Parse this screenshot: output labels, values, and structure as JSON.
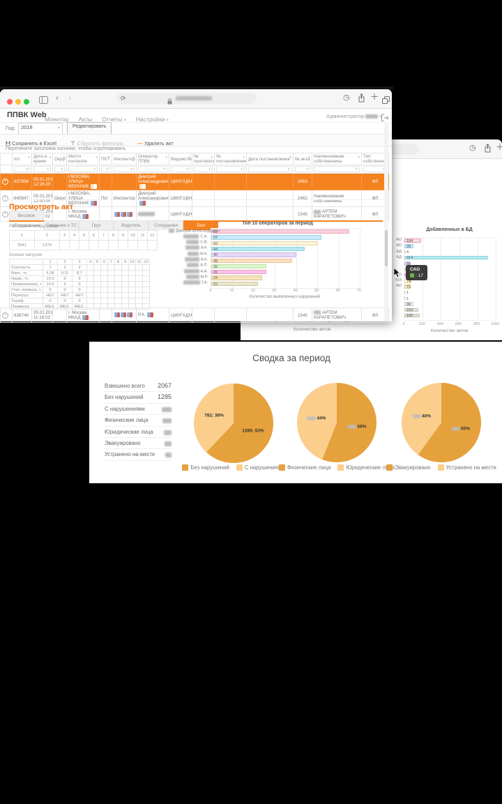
{
  "accent": "#F5821F",
  "chrome": {
    "traffic": [
      "#ff5f57",
      "#febc2e",
      "#28c840"
    ],
    "icons": [
      "sidebar",
      "back",
      "forward",
      "reload",
      "lock",
      "history",
      "share",
      "new-tab",
      "tabs"
    ]
  },
  "app": {
    "title": "ППВК Web",
    "menu": [
      {
        "label": "Монитор",
        "caret": false
      },
      {
        "label": "Акты",
        "caret": false
      },
      {
        "label": "Отчеты",
        "caret": true
      },
      {
        "label": "Настройки",
        "caret": true
      }
    ],
    "user_label": "Администратор",
    "year_label": "Год:",
    "year_value": "2018",
    "edit_button": "Редактировать",
    "toolbar": {
      "save": "Сохранить в Excel",
      "reset": "Сбросить фильтры",
      "delete": "Удалить акт"
    },
    "group_hint": "Перетяните заголовок колонки, чтобы сгруппировать",
    "table": {
      "columns": [
        {
          "label": "",
          "width": 17
        },
        {
          "label": "п/п",
          "width": 28
        },
        {
          "label": "Дата и время",
          "width": 30
        },
        {
          "label": "Округ",
          "width": 20
        },
        {
          "label": "Место контроля",
          "width": 47
        },
        {
          "label": "ПКТ",
          "width": 18
        },
        {
          "label": "Инспектор",
          "width": 35
        },
        {
          "label": "Оператор ППВК",
          "width": 47
        },
        {
          "label": "Ведомство",
          "width": 33
        },
        {
          "label": "№ протокола",
          "width": 32
        },
        {
          "label": "№ постановления",
          "width": 46
        },
        {
          "label": "Дата постановления",
          "width": 67
        },
        {
          "label": "№ акта",
          "width": 27
        },
        {
          "label": "Наименование собственника",
          "width": 71
        },
        {
          "label": "Тип собственника",
          "width": 39
        }
      ],
      "rows": [
        {
          "selected": true,
          "cells": [
            {
              "exp": 1
            },
            {
              "text": "637856"
            },
            {
              "text": "05.01.2018 12:26:20"
            },
            {},
            {
              "text": "г.МОСКВА, УЛИЦА ВЕРХНИЕ",
              "thumb": 1
            },
            {},
            {},
            {
              "text": "Дмитрий Александрович",
              "thumb": 1
            },
            {
              "text": "ЦМУГАДН"
            },
            {},
            {},
            {},
            {
              "text": "2463"
            },
            {},
            {
              "text": "ФЛ"
            }
          ]
        },
        {
          "selected": false,
          "cells": [
            {
              "exp": 1
            },
            {
              "text": "640947"
            },
            {
              "text": "05.01.2018 12:00:00"
            },
            {
              "text": "Округ"
            },
            {
              "text": "г.МОСКВА, УЛИЦА ВЕРХНИЕ",
              "thumb": 1
            },
            {
              "text": "Пкт"
            },
            {
              "text": "Инспектор"
            },
            {
              "text": "Дмитрий Александрович",
              "thumb": 1
            },
            {
              "text": "ЦМУГАДН"
            },
            {},
            {},
            {},
            {
              "text": "2462"
            },
            {
              "text": "Наименование собственника"
            },
            {
              "text": "ФЛ"
            }
          ]
        },
        {
          "selected": false,
          "cells": [
            {
              "exp": 1
            },
            {
              "text": "638729"
            },
            {
              "text": "05.01.2018 11:16:02"
            },
            {},
            {
              "text": "г. Москва МКАД",
              "thumb": 1
            },
            {},
            {
              "thumbs": 3
            },
            {
              "blur": 24
            },
            {
              "text": "ЦМУГАДН"
            },
            {},
            {},
            {},
            {
              "text": "1545"
            },
            {
              "text": "АРТЕМ КАРАПЕТОВИЧ",
              "blurPrefix": 1
            },
            {
              "text": "ФЛ"
            }
          ]
        }
      ],
      "row_after_detail": {
        "selected": false,
        "cells": [
          {
            "exp": 1
          },
          {
            "text": "638748"
          },
          {
            "text": "05.01.2018 11:16:02"
          },
          {},
          {
            "text": "г. Москва МКАД",
            "thumb": 1
          },
          {},
          {
            "thumbs": 3
          },
          {
            "text": "Р.А.",
            "thumb": 1
          },
          {
            "text": "ЦМУГАДН"
          },
          {},
          {},
          {},
          {
            "text": "1545"
          },
          {
            "text": "АРТЕМ КАРАПЕТОВИЧ",
            "blurPrefix": 1
          },
          {
            "text": "ФЛ"
          }
        ]
      }
    },
    "detail": {
      "title": "Просмотреть акт",
      "tabs": [
        {
          "label": "Весовое оборудование",
          "active": false
        },
        {
          "label": "Сведения о ТС",
          "active": false
        },
        {
          "label": "Груз",
          "active": false
        },
        {
          "label": "Водитель",
          "active": false
        },
        {
          "label": "Сотрудники",
          "active": false
        },
        {
          "label": "Оси",
          "active": true
        }
      ],
      "axle_distance": {
        "caption": "Расстояние между осями",
        "headers": [
          "1",
          "2",
          "3",
          "4",
          "5",
          "6",
          "7",
          "8",
          "9",
          "10",
          "11",
          "12"
        ],
        "values": [
          "3541",
          "1379",
          "",
          "",
          "",
          "",
          "",
          "",
          "",
          "",
          "",
          ""
        ]
      },
      "axle_loads": {
        "caption": "Осевые нагрузки",
        "col_headers": [
          "1",
          "2",
          "3",
          "4",
          "5",
          "6",
          "7",
          "8",
          "9",
          "10",
          "11",
          "12"
        ],
        "rows": [
          {
            "label": "Скатность",
            "values": [
              "1",
              "2",
              "2"
            ]
          },
          {
            "label": "Факт., тс",
            "values": [
              "6,38",
              "9,11",
              "8,7"
            ]
          },
          {
            "label": "Норм., тс",
            "values": [
              "10.5",
              "9",
              "9"
            ]
          },
          {
            "label": "Применяемая, т",
            "values": [
              "10.5",
              "9",
              "9"
            ]
          },
          {
            "label": "Учит. превыш, т",
            "values": [
              "0",
              "0",
              "0"
            ]
          },
          {
            "label": "Перегруз",
            "values": [
              "НЕТ",
              "НЕТ",
              "НЕТ"
            ]
          },
          {
            "label": "Тариф",
            "values": [
              "0",
              "0",
              "0"
            ]
          },
          {
            "label": "Подвеска",
            "values": [
              "МЕХ.",
              "МЕХ.",
              "МЕХ."
            ]
          }
        ]
      }
    }
  },
  "summary": {
    "title": "Сводка за период",
    "stats": [
      {
        "label": "Взвешено всего",
        "value": "2067",
        "blur": 0
      },
      {
        "label": "Без нарушений",
        "value": "1285",
        "blur": 0
      },
      {
        "label": "С нарушениями",
        "value": "",
        "blur": 14
      },
      {
        "label": "Физические лица",
        "value": "",
        "blur": 13
      },
      {
        "label": "Юридические лица",
        "value": "",
        "blur": 11
      },
      {
        "label": "Эвакуировано",
        "value": "",
        "blur": 10
      },
      {
        "label": "Устранено на месте",
        "value": "",
        "blur": 9
      }
    ]
  },
  "chart_data": [
    {
      "id": "top-operators",
      "type": "bar",
      "orientation": "horizontal",
      "title": "Топ 10 операторов за период",
      "xlabel": "Количество выявленных нарушений",
      "xlim": [
        0,
        70
      ],
      "xticks": [
        0,
        10,
        20,
        30,
        40,
        50,
        60,
        70
      ],
      "grid": true,
      "categories": [
        {
          "label": "Дмитрий Александрович",
          "blur": 8
        },
        {
          "label": "С.А.",
          "blur": 22
        },
        {
          "label": "С.В.",
          "blur": 18
        },
        {
          "label": "А.К.",
          "blur": 20
        },
        {
          "label": "М.К.",
          "blur": 16
        },
        {
          "label": "А.К.",
          "blur": 21
        },
        {
          "label": "А.П.",
          "blur": 17
        },
        {
          "label": "А.А.",
          "blur": 22
        },
        {
          "label": "М.Р.",
          "blur": 19
        },
        {
          "label": "Т.А.",
          "blur": 24
        }
      ],
      "values": [
        65,
        52,
        50,
        44,
        40,
        38,
        26,
        26,
        24,
        22
      ],
      "colors": [
        "#FAD1DC",
        "#C9E9F8",
        "#FDF3D9",
        "#B5EAF2",
        "#E6D9F7",
        "#FBDFC2",
        "#DDF5CE",
        "#FAC4E4",
        "#F5E3BD",
        "#EAE6CC"
      ],
      "borders": [
        "#ECA4B6",
        "#9FCFE8",
        "#E8D5A4",
        "#8ED4E0",
        "#C6B4E6",
        "#EEC391",
        "#B7E3A0",
        "#EB9CCC",
        "#DDC690",
        "#CFC9A5"
      ]
    },
    {
      "id": "added-to-db",
      "type": "bar",
      "orientation": "horizontal",
      "title": "Добавленных в БД",
      "xlabel": "Количество актов",
      "xlim": [
        0,
        1000
      ],
      "xticks": [
        0,
        200,
        400,
        600,
        800,
        1000
      ],
      "grid": true,
      "categories": [
        "АО",
        "АО",
        "АД",
        "АД",
        "",
        "",
        "АО",
        "ЮЗ",
        "АО",
        "",
        "",
        "",
        "",
        ""
      ],
      "values": [
        184,
        99,
        4,
        914,
        60,
        17,
        105,
        74,
        71,
        1,
        1,
        98,
        153,
        165
      ],
      "value_labels": [
        "184",
        "99",
        "4",
        "914",
        "60",
        "",
        "",
        "74",
        "71",
        "1",
        "1",
        "98",
        "153",
        "165"
      ],
      "colors": [
        "#FBDCE2",
        "#C9E9F8",
        "#FDF3D9",
        "#B5EAF2",
        "#E6D9F7",
        "#DDF5CE",
        "#FAC4E4",
        "#FDF3D9",
        "#F5E3BD",
        "#FFFFFF",
        "#FFFFFF",
        "#ECECEC",
        "#E3E3DA",
        "#E0E0D4"
      ],
      "borders": [
        "#E89AA8",
        "#9FCFE8",
        "#E8D5A4",
        "#8ED4E0",
        "#C6B4E6",
        "#B7E3A0",
        "#EB9CCC",
        "#E8D5A4",
        "#DDC690",
        "#DDDDDD",
        "#DDDDDD",
        "#CFCFCF",
        "#C6C6B8",
        "#C2C2B0"
      ],
      "tooltip": {
        "title": "САО",
        "value": ": 17",
        "swatch": "#67b346"
      }
    },
    {
      "id": "hidden-left-chart-axis",
      "type": "bar",
      "xlabel": "Количество актов",
      "xticks": [
        0,
        5,
        10,
        15,
        20
      ]
    },
    {
      "id": "pie-violations",
      "type": "pie",
      "slices": [
        {
          "label": "Без нарушений",
          "pct": 62,
          "value_label": "1285; 62%",
          "color": "#E5A13C",
          "blur": 0
        },
        {
          "label": "С нарушениями",
          "pct": 38,
          "value_label": "782; 38%",
          "color": "#FBCE8C",
          "blur": 0
        }
      ]
    },
    {
      "id": "pie-persons",
      "type": "pie",
      "slices": [
        {
          "label": "Физические лица",
          "pct": 56,
          "value_label": "56%",
          "color": "#E5A13C",
          "blur": 12
        },
        {
          "label": "Юридические лица",
          "pct": 44,
          "value_label": "44%",
          "color": "#FBCE8C",
          "blur": 12
        }
      ]
    },
    {
      "id": "pie-evacuated",
      "type": "pie",
      "slices": [
        {
          "label": "Эвакуировано",
          "pct": 60,
          "value_label": "60%",
          "color": "#E5A13C",
          "blur": 11
        },
        {
          "label": "Устранено на месте",
          "pct": 40,
          "value_label": "40%",
          "color": "#FBCE8C",
          "blur": 11
        }
      ]
    }
  ]
}
